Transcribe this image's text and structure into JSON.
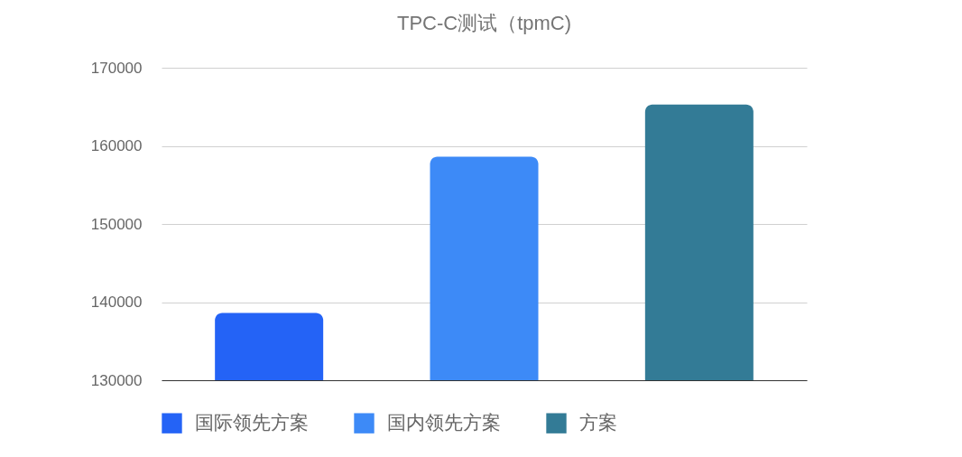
{
  "chart_data": {
    "type": "bar",
    "title": "TPC-C测试（tpmC)",
    "categories": [
      null,
      null,
      null
    ],
    "series": [
      {
        "name": "国际领先方案",
        "color": "#2463f6",
        "values": [
          138600,
          null,
          null
        ]
      },
      {
        "name": "国内领先方案",
        "color": "#3d8af7",
        "values": [
          null,
          158600,
          null
        ]
      },
      {
        "name": "方案",
        "color": "#337b96",
        "values": [
          null,
          null,
          165300
        ]
      }
    ],
    "ylim": [
      130000,
      170000
    ],
    "yticks": [
      {
        "value": 130000,
        "label": "130000"
      },
      {
        "value": 140000,
        "label": "140000"
      },
      {
        "value": 150000,
        "label": "150000"
      },
      {
        "value": 160000,
        "label": "160000"
      },
      {
        "value": 170000,
        "label": "170000"
      }
    ],
    "grid": "y",
    "legend": "bottom",
    "tick_labels": "y"
  }
}
